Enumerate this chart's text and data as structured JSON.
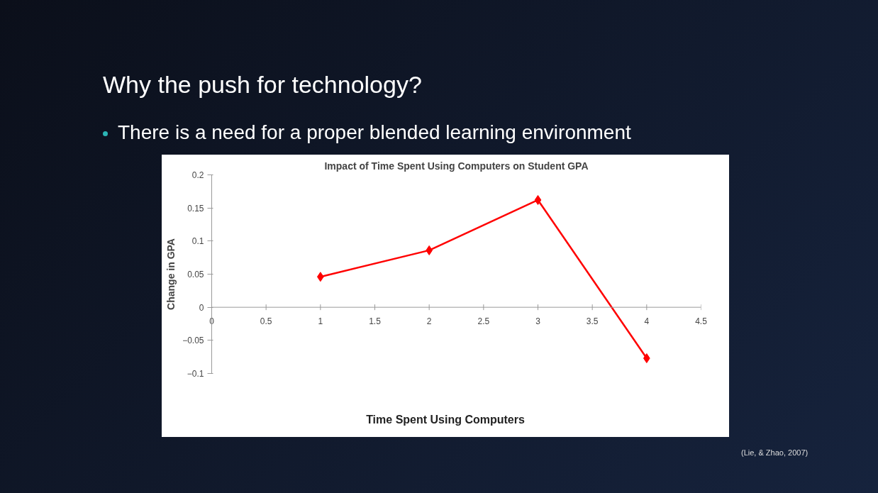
{
  "chart_data": {
    "type": "line",
    "title": "Impact of Time Spent Using Computers on Student GPA",
    "xlabel": "Time Spent Using Computers",
    "ylabel": "Change in GPA",
    "annotations": [
      "Why the push for technology?",
      "There is a need for a proper blended learning environment",
      "(Lie, & Zhao, 2007)"
    ],
    "x": [
      1,
      2,
      3,
      4
    ],
    "series": [
      {
        "color": "#ff0000",
        "values": [
          0.046,
          0.086,
          0.162,
          -0.077
        ]
      }
    ],
    "xlim": [
      0,
      4.5
    ],
    "xticks": [
      0,
      0.5,
      1,
      1.5,
      2,
      2.5,
      3,
      3.5,
      4,
      4.5
    ],
    "ylim": [
      -0.1,
      0.2
    ],
    "yticks": [
      {
        "value": -0.1,
        "label": "−0.1"
      },
      {
        "value": -0.05,
        "label": "−0.05"
      },
      0,
      0.05,
      0.1,
      0.15,
      0.2
    ],
    "grid": false,
    "marker": "diamond",
    "line_style": "solid"
  }
}
